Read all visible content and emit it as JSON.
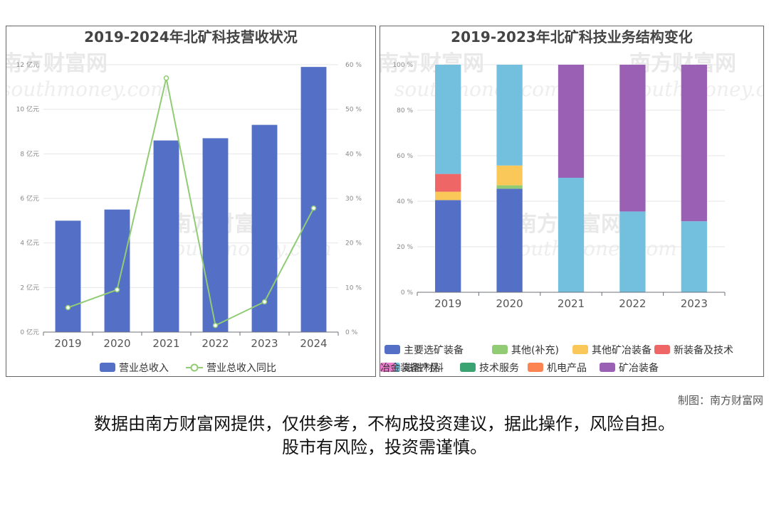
{
  "charts": {
    "left": {
      "title": "2019-2024年北矿科技营收状况",
      "legend": {
        "bar": "营业总收入",
        "line": "营业总收入同比"
      }
    },
    "right": {
      "title": "2019-2023年北矿科技业务结构变化"
    }
  },
  "watermark": {
    "brand": "南方财富网",
    "site": "southmoney.com"
  },
  "credit": "制图：南方财富网",
  "disclaimer": {
    "line1": "数据由南方财富网提供，仅供参考，不构成投资建议，据此操作，风险自担。",
    "line2": "股市有风险，投资需谨慎。"
  },
  "colors": {
    "bar": "#5470c6",
    "line": "#91cc75"
  },
  "chart_data": [
    {
      "type": "bar",
      "title": "2019-2024年北矿科技营收状况",
      "categories": [
        "2019",
        "2020",
        "2021",
        "2022",
        "2023",
        "2024"
      ],
      "series": [
        {
          "name": "营业总收入",
          "kind": "bar",
          "axis": "left",
          "color": "#5470c6",
          "values": [
            5.0,
            5.5,
            8.6,
            8.7,
            9.3,
            11.9
          ]
        },
        {
          "name": "营业总收入同比",
          "kind": "line",
          "axis": "right",
          "color": "#91cc75",
          "values": [
            5.5,
            9.5,
            57,
            1.5,
            6.8,
            27.8
          ]
        }
      ],
      "y_left": {
        "min": 0,
        "max": 12,
        "step": 2,
        "unit": "亿元"
      },
      "y_right": {
        "min": 0,
        "max": 60,
        "step": 10,
        "unit": "%"
      },
      "grid": true,
      "legend": "bottom"
    },
    {
      "type": "bar",
      "stacked": true,
      "title": "2019-2023年北矿科技业务结构变化",
      "categories": [
        "2019",
        "2020",
        "2021",
        "2022",
        "2023"
      ],
      "series": [
        {
          "name": "主要选矿装备",
          "color": "#5470c6",
          "values": [
            40.5,
            45.5,
            0,
            0,
            0
          ]
        },
        {
          "name": "其他(补充)",
          "color": "#91cc75",
          "values": [
            0,
            1.5,
            0,
            0,
            0
          ]
        },
        {
          "name": "其他矿冶装备",
          "color": "#fac858",
          "values": [
            3.7,
            8.7,
            0,
            0,
            0
          ]
        },
        {
          "name": "新装备及技术",
          "color": "#ee6666",
          "values": [
            7.8,
            0,
            0,
            0,
            0
          ]
        },
        {
          "name": "磁性材料",
          "color": "#73c0de",
          "values": [
            48,
            44.3,
            50.3,
            35.5,
            31.2
          ]
        },
        {
          "name": "技术服务",
          "color": "#3ba272",
          "values": [
            0,
            0,
            0,
            0,
            0
          ]
        },
        {
          "name": "机电产品",
          "color": "#fc8452",
          "values": [
            0,
            0,
            0,
            0,
            0
          ]
        },
        {
          "name": "矿冶装备",
          "color": "#9a60b4",
          "values": [
            0,
            0,
            49.7,
            64.5,
            68.8
          ]
        },
        {
          "name": "冶金装备产品",
          "color": "#ea7ccc",
          "values": [
            0,
            0,
            0,
            0,
            0
          ]
        }
      ],
      "y": {
        "min": 0,
        "max": 100,
        "step": 20,
        "unit": "%"
      },
      "grid": true,
      "legend": "bottom"
    }
  ]
}
